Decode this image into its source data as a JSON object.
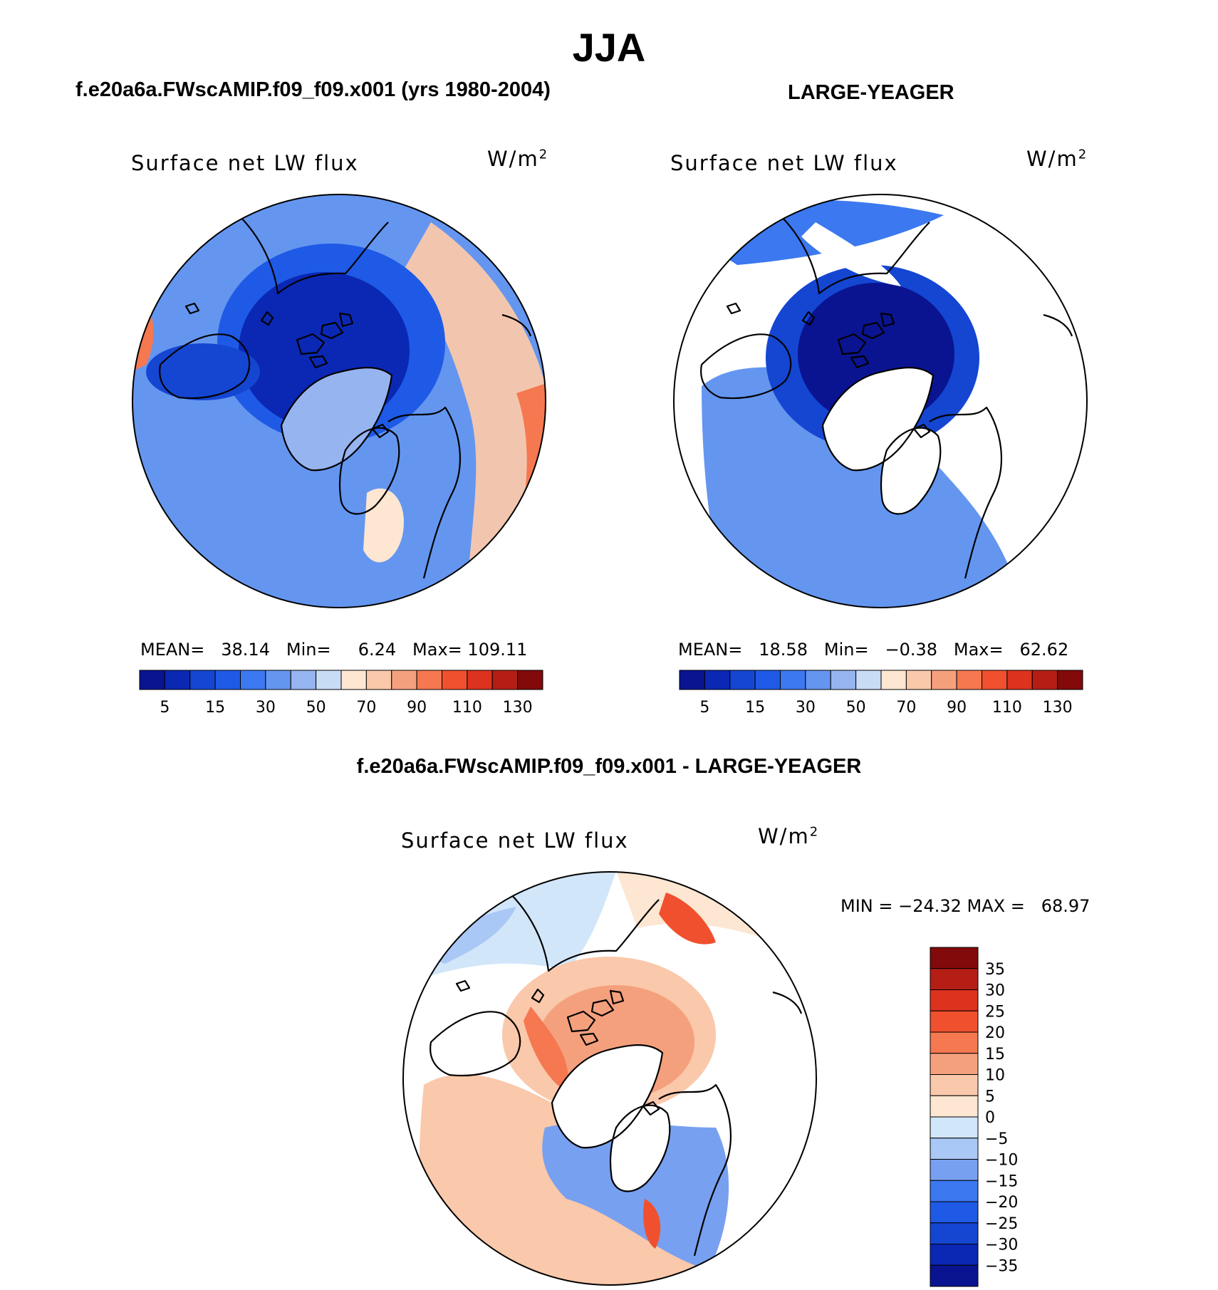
{
  "figure": {
    "title": "JJA",
    "panel_a_title": "f.e20a6a.FWscAMIP.f09_f09.x001 (yrs 1980-2004)",
    "panel_b_title": "LARGE-YEAGER",
    "panel_c_title": "f.e20a6a.FWscAMIP.f09_f09.x001 - LARGE-YEAGER"
  },
  "panels": {
    "a": {
      "variable": "Surface net LW flux",
      "units_base": "W/m",
      "units_exp": "2",
      "mean_label": "MEAN=",
      "mean_value": "38.14",
      "min_label": "Min=",
      "min_value": "6.24",
      "max_label": "Max=",
      "max_value": "109.11"
    },
    "b": {
      "variable": "Surface net LW flux",
      "units_base": "W/m",
      "units_exp": "2",
      "mean_label": "MEAN=",
      "mean_value": "18.58",
      "min_label": "Min=",
      "min_value": "−0.38",
      "max_label": "Max=",
      "max_value": "62.62"
    },
    "c": {
      "variable": "Surface net LW flux",
      "units_base": "W/m",
      "units_exp": "2",
      "minmax_text": "MIN = −24.32 MAX =   68.97"
    }
  },
  "colors": {
    "seq_palette": [
      "#0a1490",
      "#0a28b4",
      "#1446d2",
      "#1e5ae6",
      "#3c78f0",
      "#6496f0",
      "#96b4f0",
      "#c8dcf5",
      "#fde6d2",
      "#fac8aa",
      "#f5a07d",
      "#f57850",
      "#f0502d",
      "#dc321e",
      "#b41e14",
      "#820a0a"
    ],
    "diff_palette": [
      "#0a1490",
      "#0a28b4",
      "#1446d2",
      "#1e5ae6",
      "#3c78f0",
      "#78a0f0",
      "#aac8f5",
      "#d2e6fa",
      "#fde6d2",
      "#fac8aa",
      "#f5a07d",
      "#f57850",
      "#f0502d",
      "#dc321e",
      "#b41e14",
      "#820a0a"
    ],
    "land": "#ffffff",
    "coast": "#000000"
  },
  "colorbars": {
    "sequential_labels": [
      "5",
      "15",
      "30",
      "50",
      "70",
      "90",
      "110",
      "130"
    ],
    "diff_labels": [
      "35",
      "30",
      "25",
      "20",
      "15",
      "10",
      "5",
      "0",
      "−5",
      "−10",
      "−15",
      "−20",
      "−25",
      "−30",
      "−35"
    ]
  },
  "chart_data": [
    {
      "type": "heatmap",
      "title": "f.e20a6a.FWscAMIP.f09_f09.x001 (yrs 1980-2004)",
      "variable": "Surface net LW flux",
      "units": "W/m2",
      "projection": "north polar stereographic",
      "levels": [
        5,
        10,
        15,
        20,
        30,
        40,
        50,
        60,
        70,
        80,
        90,
        100,
        110,
        120,
        130
      ],
      "mean": 38.14,
      "min": 6.24,
      "max": 109.11
    },
    {
      "type": "heatmap",
      "title": "LARGE-YEAGER",
      "variable": "Surface net LW flux",
      "units": "W/m2",
      "projection": "north polar stereographic",
      "levels": [
        5,
        10,
        15,
        20,
        30,
        40,
        50,
        60,
        70,
        80,
        90,
        100,
        110,
        120,
        130
      ],
      "mean": 18.58,
      "min": -0.38,
      "max": 62.62
    },
    {
      "type": "heatmap",
      "title": "f.e20a6a.FWscAMIP.f09_f09.x001 - LARGE-YEAGER",
      "variable": "Surface net LW flux",
      "units": "W/m2",
      "projection": "north polar stereographic",
      "levels": [
        -35,
        -30,
        -25,
        -20,
        -15,
        -10,
        -5,
        0,
        5,
        10,
        15,
        20,
        25,
        30,
        35
      ],
      "min": -24.32,
      "max": 68.97
    }
  ]
}
